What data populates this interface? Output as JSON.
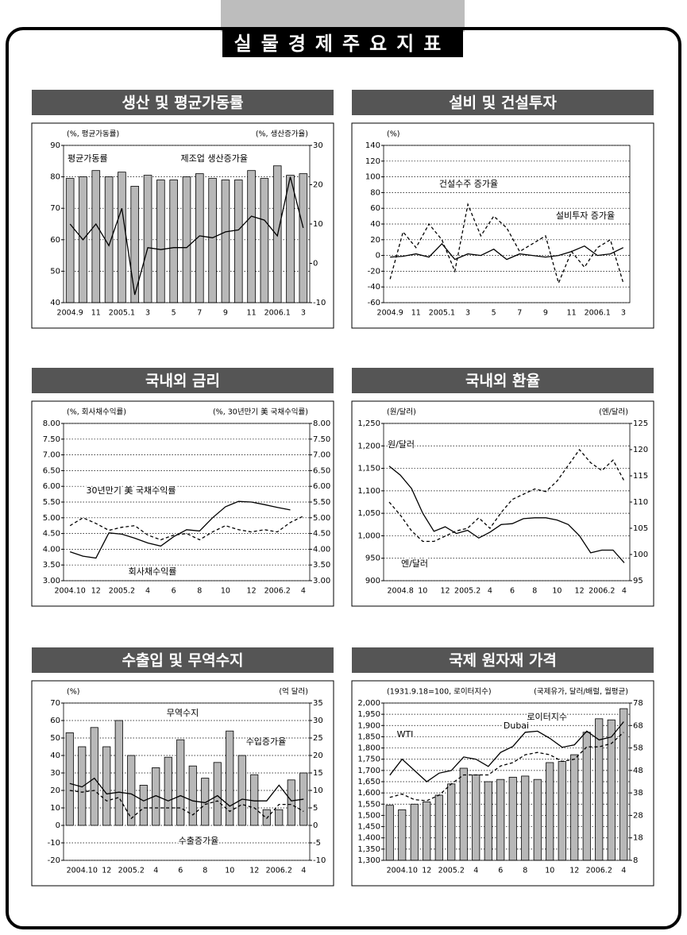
{
  "title": "실물경제주요지표",
  "chart_data": [
    {
      "type": "bar_line",
      "title": "생산 및 평균가동률",
      "left_label": "(%, 평균가동률)",
      "right_label": "(%, 생산증가율)",
      "categories": [
        "2004.9",
        null,
        "11",
        null,
        "2005.1",
        null,
        "3",
        null,
        "5",
        null,
        "7",
        null,
        "9",
        null,
        "11",
        null,
        "2006.1",
        null,
        "3"
      ],
      "series": [
        {
          "name": "평균가동률",
          "kind": "bar",
          "color": "#b8b8b8",
          "values": [
            79.5,
            80,
            82,
            80,
            81.5,
            77,
            80.5,
            79,
            79,
            80,
            81,
            79.5,
            79,
            79,
            82,
            79.5,
            83.5,
            80.5,
            81
          ]
        },
        {
          "name": "제조업 생산증가율",
          "kind": "line",
          "style": "solid",
          "axis": "y2",
          "color": "#000000",
          "values": [
            10,
            6,
            10,
            4.5,
            14,
            -8,
            4,
            3.5,
            4,
            4,
            7,
            6.5,
            8,
            8.5,
            12,
            11,
            7,
            22,
            9
          ]
        }
      ],
      "ylim": [
        40,
        90
      ],
      "yticks": [
        40,
        50,
        60,
        70,
        80,
        90
      ],
      "y2lim": [
        -10,
        30
      ],
      "y2ticks": [
        -10,
        0,
        10,
        20,
        30
      ],
      "grid": true
    },
    {
      "type": "bar_line",
      "title": "설비 및 건설투자",
      "left_label": "(%)",
      "categories": [
        "2004.9",
        null,
        "11",
        null,
        "2005.1",
        null,
        "3",
        null,
        "5",
        null,
        "7",
        null,
        "9",
        null,
        "11",
        null,
        "2006.1",
        null,
        "3"
      ],
      "series": [
        {
          "name": "건설수주 증가율",
          "kind": "line",
          "style": "dashed",
          "color": "#000000",
          "values": [
            -30,
            30,
            10,
            40,
            20,
            -20,
            65,
            25,
            50,
            35,
            5,
            15,
            25,
            -35,
            5,
            -15,
            10,
            20,
            -35
          ]
        },
        {
          "name": "설비투자 증가율",
          "kind": "line",
          "style": "solid",
          "color": "#000000",
          "values": [
            -2,
            -1,
            2,
            -2,
            15,
            -5,
            2,
            0,
            8,
            -5,
            2,
            0,
            -2,
            0,
            5,
            12,
            0,
            2,
            10
          ]
        }
      ],
      "ylim": [
        -60,
        140
      ],
      "yticks": [
        -60,
        -40,
        -20,
        0,
        20,
        40,
        60,
        80,
        100,
        120,
        140
      ],
      "grid": true
    },
    {
      "type": "bar_line",
      "title": "국내외 금리",
      "left_label": "(%, 회사채수익률)",
      "right_label": "(%, 30년만기 美 국채수익률)",
      "categories": [
        "2004.10",
        null,
        "12",
        null,
        "2005.2",
        null,
        "4",
        null,
        "6",
        null,
        "8",
        null,
        "10",
        null,
        "12",
        null,
        "2006.2",
        null,
        "4"
      ],
      "series": [
        {
          "name": "30년만기 美 국채수익률",
          "kind": "line",
          "style": "dashed",
          "axis": "y2",
          "color": "#000000",
          "values": [
            4.75,
            5.0,
            4.82,
            4.6,
            4.7,
            4.75,
            4.45,
            4.3,
            4.45,
            4.5,
            4.3,
            4.55,
            4.75,
            4.62,
            4.55,
            4.62,
            4.55,
            4.85,
            5.05
          ]
        },
        {
          "name": "회사채수익률",
          "kind": "line",
          "style": "solid",
          "color": "#000000",
          "values": [
            3.92,
            3.78,
            3.72,
            4.52,
            4.48,
            4.35,
            4.2,
            4.1,
            4.4,
            4.62,
            4.58,
            5.0,
            5.35,
            5.52,
            5.5,
            5.42,
            5.33,
            5.25,
            null
          ]
        }
      ],
      "ylim": [
        3,
        8
      ],
      "yticks": [
        {
          "value": 3,
          "label": "3.00"
        },
        {
          "value": 3.5,
          "label": "3.50"
        },
        {
          "value": 4,
          "label": "4.00"
        },
        {
          "value": 4.5,
          "label": "4.50"
        },
        {
          "value": 5,
          "label": "5.00"
        },
        {
          "value": 5.5,
          "label": "5.50"
        },
        {
          "value": 6,
          "label": "6.00"
        },
        {
          "value": 6.5,
          "label": "6.50"
        },
        {
          "value": 7,
          "label": "7.00"
        },
        {
          "value": 7.5,
          "label": "7.50"
        },
        {
          "value": 8,
          "label": "8.00"
        }
      ],
      "y2lim": [
        3,
        8
      ],
      "y2ticks": [
        {
          "value": 3,
          "label": "3.00"
        },
        {
          "value": 3.5,
          "label": "3.50"
        },
        {
          "value": 4,
          "label": "4.00"
        },
        {
          "value": 4.5,
          "label": "4.50"
        },
        {
          "value": 5,
          "label": "5.00"
        },
        {
          "value": 5.5,
          "label": "5.50"
        },
        {
          "value": 6,
          "label": "6.00"
        },
        {
          "value": 6.5,
          "label": "6.50"
        },
        {
          "value": 7,
          "label": "7.00"
        },
        {
          "value": 7.5,
          "label": "7.50"
        },
        {
          "value": 8,
          "label": "8.00"
        }
      ],
      "grid": true
    },
    {
      "type": "bar_line",
      "title": "국내외 환율",
      "left_label": "(원/달러)",
      "right_label": "(엔/달러)",
      "categories": [
        null,
        "2004.8",
        null,
        "10",
        null,
        "12",
        null,
        "2005.2",
        null,
        "4",
        null,
        "6",
        null,
        "8",
        null,
        "10",
        null,
        "12",
        null,
        "2006.2",
        null,
        "4"
      ],
      "series": [
        {
          "name": "원/달러",
          "kind": "line",
          "style": "solid",
          "color": "#000000",
          "values": [
            1155,
            1135,
            1105,
            1050,
            1010,
            1020,
            1005,
            1012,
            995,
            1008,
            1025,
            1027,
            1038,
            1040,
            1040,
            1035,
            1025,
            1000,
            962,
            968,
            968,
            940
          ]
        },
        {
          "name": "엔/달러",
          "kind": "line",
          "style": "dashed",
          "axis": "y2",
          "color": "#000000",
          "values": [
            110,
            107.5,
            104.5,
            102.5,
            102.5,
            103.5,
            104.5,
            105,
            107,
            105,
            108,
            110.5,
            111.5,
            112.5,
            112,
            114,
            117,
            120,
            117.5,
            116,
            118,
            114
          ]
        }
      ],
      "ylim": [
        900,
        1250
      ],
      "yticks": [
        900,
        950,
        {
          "value": 1000,
          "label": "1,000"
        },
        {
          "value": 1050,
          "label": "1,050"
        },
        {
          "value": 1100,
          "label": "1,100"
        },
        {
          "value": 1150,
          "label": "1,150"
        },
        {
          "value": 1200,
          "label": "1,200"
        },
        {
          "value": 1250,
          "label": "1,250"
        }
      ],
      "y2lim": [
        95,
        125
      ],
      "y2ticks": [
        95,
        100,
        105,
        110,
        115,
        120,
        125
      ],
      "grid": true
    },
    {
      "type": "bar_line",
      "title": "수출입 및 무역수지",
      "left_label": "(%)",
      "right_label": "(억 달러)",
      "categories": [
        null,
        "2004.10",
        null,
        "12",
        null,
        "2005.2",
        null,
        "4",
        null,
        "6",
        null,
        "8",
        null,
        "10",
        null,
        "12",
        null,
        "2006.2",
        null,
        "4"
      ],
      "series": [
        {
          "name": "무역수지",
          "kind": "bar",
          "axis": "y2",
          "color": "#b8b8b8",
          "values": [
            26.5,
            22.5,
            28,
            22.5,
            30,
            20,
            11.5,
            16.5,
            19.5,
            24.5,
            17,
            13.5,
            18,
            27,
            20,
            14.5,
            4.5,
            4.5,
            13,
            15
          ]
        },
        {
          "name": "수입증가율",
          "kind": "line",
          "style": "solid",
          "color": "#000000",
          "values": [
            24,
            22,
            27,
            18,
            19,
            18,
            14,
            17,
            14,
            17,
            14,
            13,
            17,
            11,
            15,
            14,
            14,
            23,
            14,
            15
          ]
        },
        {
          "name": "수출증가율",
          "kind": "line",
          "style": "dashed",
          "color": "#000000",
          "values": [
            20,
            19,
            20,
            14,
            16,
            4,
            10,
            10,
            10,
            10,
            6,
            12,
            14,
            8,
            12,
            10,
            4,
            12,
            12,
            8
          ]
        }
      ],
      "ylim": [
        -20,
        70
      ],
      "yticks": [
        -20,
        -10,
        0,
        10,
        20,
        30,
        40,
        50,
        60,
        70
      ],
      "y2lim": [
        -10,
        35
      ],
      "y2ticks": [
        -10,
        -5,
        0,
        5,
        10,
        15,
        20,
        25,
        30,
        35
      ],
      "grid": true
    },
    {
      "type": "bar_line",
      "title": "국제 원자재 가격",
      "left_label": "(1931.9.18=100, 로이터지수)",
      "right_label": "(국제유가, 달러/배럴, 월평균)",
      "categories": [
        null,
        "2004.10",
        null,
        "12",
        null,
        "2005.2",
        null,
        "4",
        null,
        "6",
        null,
        "8",
        null,
        "10",
        null,
        "12",
        null,
        "2006.2",
        null,
        "4"
      ],
      "series": [
        {
          "name": "로이터지수",
          "kind": "bar",
          "color": "#b8b8b8",
          "values": [
            1545,
            1525,
            1550,
            1560,
            1590,
            1640,
            1710,
            1680,
            1650,
            1660,
            1670,
            1675,
            1660,
            1735,
            1740,
            1770,
            1870,
            1930,
            1925,
            1975
          ]
        },
        {
          "name": "WTI",
          "kind": "line",
          "style": "solid",
          "axis": "y2",
          "color": "#000000",
          "values": [
            45.9,
            53,
            48,
            43,
            46.8,
            48,
            54,
            53,
            49.8,
            56,
            58.7,
            65,
            65.5,
            62.3,
            58.3,
            59.4,
            65.5,
            61.6,
            62.9,
            69.7
          ]
        },
        {
          "name": "Dubai",
          "kind": "line",
          "style": "dashed",
          "axis": "y2",
          "color": "#000000",
          "values": [
            36,
            37.5,
            35,
            34.5,
            37,
            42,
            46,
            46,
            46,
            50,
            51.5,
            55,
            56,
            55,
            52,
            53,
            58.5,
            58.5,
            60,
            65
          ]
        }
      ],
      "ylim": [
        1300,
        2000
      ],
      "yticks": [
        {
          "value": 1300,
          "label": "1,300"
        },
        {
          "value": 1350,
          "label": "1,350"
        },
        {
          "value": 1400,
          "label": "1,400"
        },
        {
          "value": 1450,
          "label": "1,450"
        },
        {
          "value": 1500,
          "label": "1,500"
        },
        {
          "value": 1550,
          "label": "1,550"
        },
        {
          "value": 1600,
          "label": "1,600"
        },
        {
          "value": 1650,
          "label": "1,650"
        },
        {
          "value": 1700,
          "label": "1,700"
        },
        {
          "value": 1750,
          "label": "1,750"
        },
        {
          "value": 1800,
          "label": "1,800"
        },
        {
          "value": 1850,
          "label": "1,850"
        },
        {
          "value": 1900,
          "label": "1,900"
        },
        {
          "value": 1950,
          "label": "1,950"
        },
        {
          "value": 2000,
          "label": "2,000"
        }
      ],
      "y2lim": [
        8,
        78
      ],
      "y2ticks": [
        8,
        18,
        28,
        38,
        48,
        58,
        68,
        78
      ],
      "grid": true
    }
  ]
}
